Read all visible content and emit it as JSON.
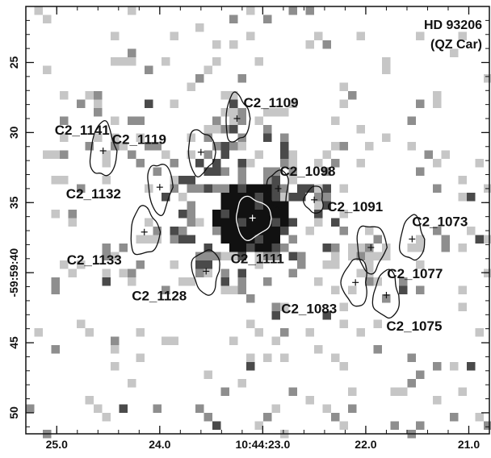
{
  "title": {
    "line1": "HD 93206",
    "line2": "(QZ Car)"
  },
  "x_axis": {
    "range": [
      25.3,
      20.8
    ],
    "ticks": [
      {
        "value": 25.0,
        "label": "25.0"
      },
      {
        "value": 24.0,
        "label": "24.0"
      },
      {
        "value": 23.0,
        "label": "10:44:23.0"
      },
      {
        "value": 22.0,
        "label": "22.0"
      },
      {
        "value": 21.0,
        "label": "21.0"
      }
    ]
  },
  "y_axis": {
    "range": [
      21.0,
      51.5
    ],
    "ticks": [
      {
        "value": 25,
        "label": "25"
      },
      {
        "value": 30,
        "label": "30"
      },
      {
        "value": 35,
        "label": "35"
      },
      {
        "value": 40,
        "label": "-59:59:40"
      },
      {
        "value": 45,
        "label": "45"
      },
      {
        "value": 50,
        "label": "50"
      }
    ]
  },
  "colors": {
    "pixel_light": "#c6c6c6",
    "pixel_mid": "#8e8e8e",
    "pixel_dark": "#4a4a4a",
    "pixel_core": "#111111",
    "contour": "#111111",
    "contour_core": "#ffffff"
  },
  "sources": [
    {
      "name": "C2_1141",
      "x": 24.55,
      "y": 31.3
    },
    {
      "name": "C2_1109",
      "x": 23.25,
      "y": 29.0
    },
    {
      "name": "C2_1119",
      "x": 23.6,
      "y": 31.4
    },
    {
      "name": "C2_1132",
      "x": 24.0,
      "y": 33.9
    },
    {
      "name": "C2_1098",
      "x": 22.85,
      "y": 34.0
    },
    {
      "name": "C2_1091",
      "x": 22.5,
      "y": 34.8
    },
    {
      "name": "C2_1073",
      "x": 21.55,
      "y": 37.6
    },
    {
      "name": "C2_1133",
      "x": 24.15,
      "y": 37.1
    },
    {
      "name": "C2_1111",
      "x": 23.1,
      "y": 36.1
    },
    {
      "name": "C2_1077",
      "x": 21.95,
      "y": 38.2
    },
    {
      "name": "C2_1128",
      "x": 23.55,
      "y": 39.9
    },
    {
      "name": "C2_1083",
      "x": 22.1,
      "y": 40.7
    },
    {
      "name": "C2_1075",
      "x": 21.8,
      "y": 41.6
    }
  ]
}
